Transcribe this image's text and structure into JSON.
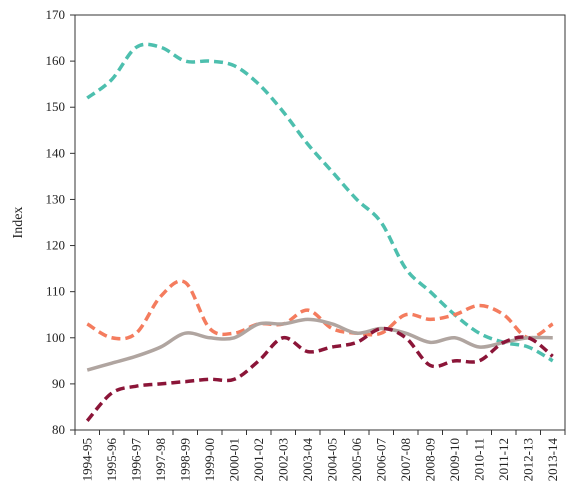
{
  "chart_data": {
    "type": "line",
    "title": "",
    "xlabel": "",
    "ylabel": "Index",
    "ylim": [
      80,
      170
    ],
    "yticks": [
      80,
      90,
      100,
      110,
      120,
      130,
      140,
      150,
      160,
      170
    ],
    "grid": false,
    "legend": "none",
    "categories": [
      "1994-95",
      "1995-96",
      "1996-97",
      "1997-98",
      "1998-99",
      "1999-00",
      "2000-01",
      "2001-02",
      "2002-03",
      "2003-04",
      "2004-05",
      "2005-06",
      "2006-07",
      "2007-08",
      "2008-09",
      "2009-10",
      "2010-11",
      "2011-12",
      "2012-13",
      "2013-14"
    ],
    "series": [
      {
        "color": "#4dbfae",
        "dash": "dashed",
        "values": [
          152,
          156,
          163,
          163,
          160,
          160,
          159,
          155,
          149,
          142,
          136,
          130,
          125,
          115,
          110,
          105,
          101,
          99,
          98,
          95
        ]
      },
      {
        "color": "#f47c5e",
        "dash": "dashed",
        "values": [
          103,
          100,
          101,
          109,
          112,
          102,
          101,
          103,
          103,
          106,
          102,
          101,
          101,
          105,
          104,
          105,
          107,
          105,
          100,
          103
        ]
      },
      {
        "color": "#b0a5a0",
        "dash": "solid",
        "values": [
          93,
          94.5,
          96,
          98,
          101,
          100,
          100,
          103,
          103,
          104,
          103,
          101,
          102,
          101,
          99,
          100,
          98,
          99,
          100,
          100
        ]
      },
      {
        "color": "#8b1538",
        "dash": "dashed",
        "values": [
          82,
          88,
          89.5,
          90,
          90.5,
          91,
          91,
          95,
          100,
          97,
          98,
          99,
          102,
          100,
          94,
          95,
          95,
          99,
          100,
          96
        ]
      }
    ]
  }
}
